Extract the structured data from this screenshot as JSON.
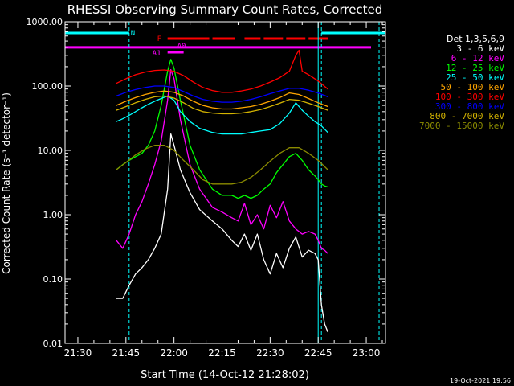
{
  "chart_data": {
    "type": "line",
    "title": "RHESSI Observing Summary Count Rates, Corrected",
    "xlabel": "Start Time (14-Oct-12 21:28:02)",
    "ylabel": "Corrected Count Rate (s⁻¹ detector⁻¹)",
    "x_ticks": [
      "21:30",
      "21:45",
      "22:00",
      "22:15",
      "22:30",
      "22:45",
      "23:00"
    ],
    "y_ticks": [
      "1000.00",
      "100.00",
      "10.00",
      "1.00",
      "0.10",
      "0.01"
    ],
    "yscale": "log",
    "xlim": [
      "21:26",
      "23:06"
    ],
    "ylim": [
      0.01,
      1000
    ],
    "legend_title": "Det 1,3,5,6,9",
    "legend_position": "right",
    "timestamp": "19-Oct-2021 19:56",
    "series": [
      {
        "name": "3 - 6 keV",
        "color": "#ffffff",
        "x": [
          "21:42",
          "21:44",
          "21:46",
          "21:48",
          "21:50",
          "21:52",
          "21:54",
          "21:56",
          "21:58",
          "21:59",
          "22:00",
          "22:02",
          "22:05",
          "22:08",
          "22:12",
          "22:15",
          "22:18",
          "22:20",
          "22:22",
          "22:24",
          "22:26",
          "22:28",
          "22:30",
          "22:32",
          "22:34",
          "22:36",
          "22:38",
          "22:40",
          "22:42",
          "22:44",
          "22:45",
          "22:46",
          "22:47",
          "22:48"
        ],
        "y": [
          0.05,
          0.05,
          0.08,
          0.12,
          0.15,
          0.2,
          0.3,
          0.5,
          2.5,
          18,
          12,
          5,
          2.2,
          1.2,
          0.8,
          0.6,
          0.4,
          0.32,
          0.5,
          0.28,
          0.5,
          0.2,
          0.12,
          0.25,
          0.15,
          0.3,
          0.45,
          0.22,
          0.28,
          0.25,
          0.2,
          0.04,
          0.02,
          0.015
        ]
      },
      {
        "name": "6 - 12 keV",
        "color": "#ff00ff",
        "x": [
          "21:42",
          "21:44",
          "21:46",
          "21:48",
          "21:50",
          "21:52",
          "21:54",
          "21:56",
          "21:58",
          "21:59",
          "22:00",
          "22:02",
          "22:05",
          "22:08",
          "22:12",
          "22:15",
          "22:18",
          "22:20",
          "22:22",
          "22:24",
          "22:26",
          "22:28",
          "22:30",
          "22:32",
          "22:34",
          "22:36",
          "22:38",
          "22:40",
          "22:42",
          "22:44",
          "22:45",
          "22:46",
          "22:47",
          "22:48"
        ],
        "y": [
          0.4,
          0.3,
          0.5,
          1.0,
          1.6,
          3,
          6,
          14,
          60,
          180,
          130,
          30,
          6,
          2.5,
          1.3,
          1.1,
          0.9,
          0.8,
          1.5,
          0.7,
          1.0,
          0.6,
          1.4,
          0.9,
          1.6,
          0.8,
          0.6,
          0.5,
          0.55,
          0.5,
          0.4,
          0.3,
          0.28,
          0.25
        ]
      },
      {
        "name": "12 - 25 keV",
        "color": "#00ff00",
        "x": [
          "21:42",
          "21:44",
          "21:46",
          "21:48",
          "21:50",
          "21:52",
          "21:54",
          "21:56",
          "21:58",
          "21:59",
          "22:00",
          "22:02",
          "22:05",
          "22:08",
          "22:12",
          "22:15",
          "22:18",
          "22:20",
          "22:22",
          "22:24",
          "22:26",
          "22:28",
          "22:30",
          "22:32",
          "22:34",
          "22:36",
          "22:38",
          "22:40",
          "22:42",
          "22:44",
          "22:45",
          "22:46",
          "22:47",
          "22:48"
        ],
        "y": [
          5,
          6,
          7,
          8,
          9,
          12,
          20,
          50,
          170,
          260,
          190,
          60,
          12,
          5,
          2.5,
          2,
          2,
          1.8,
          2,
          1.8,
          2,
          2.5,
          3,
          4.5,
          6,
          8,
          9,
          7,
          5,
          4,
          3.5,
          3,
          2.8,
          2.7
        ]
      },
      {
        "name": "25 - 50 keV",
        "color": "#00ffff",
        "x": [
          "21:42",
          "21:44",
          "21:46",
          "21:48",
          "21:50",
          "21:52",
          "21:54",
          "21:56",
          "21:58",
          "22:00",
          "22:02",
          "22:05",
          "22:08",
          "22:12",
          "22:15",
          "22:18",
          "22:21",
          "22:24",
          "22:27",
          "22:30",
          "22:33",
          "22:36",
          "22:38",
          "22:40",
          "22:42",
          "22:44",
          "22:46",
          "22:48"
        ],
        "y": [
          28,
          31,
          35,
          40,
          46,
          52,
          58,
          64,
          70,
          60,
          40,
          28,
          22,
          19,
          18,
          18,
          18,
          19,
          20,
          21,
          26,
          38,
          55,
          42,
          34,
          28,
          24,
          19
        ]
      },
      {
        "name": "50 - 100 keV",
        "color": "#ffa500",
        "x": [
          "21:42",
          "21:45",
          "21:48",
          "21:51",
          "21:54",
          "21:57",
          "22:00",
          "22:03",
          "22:06",
          "22:09",
          "22:12",
          "22:15",
          "22:18",
          "22:21",
          "22:24",
          "22:27",
          "22:30",
          "22:33",
          "22:36",
          "22:39",
          "22:42",
          "22:45",
          "22:48"
        ],
        "y": [
          50,
          58,
          66,
          74,
          80,
          84,
          80,
          70,
          58,
          50,
          46,
          44,
          44,
          46,
          48,
          52,
          58,
          66,
          78,
          74,
          64,
          55,
          48
        ]
      },
      {
        "name": "100 - 300 keV",
        "color": "#ff0000",
        "x": [
          "21:42",
          "21:45",
          "21:48",
          "21:51",
          "21:54",
          "21:57",
          "22:00",
          "22:03",
          "22:06",
          "22:09",
          "22:12",
          "22:15",
          "22:18",
          "22:21",
          "22:24",
          "22:27",
          "22:30",
          "22:33",
          "22:36",
          "22:38",
          "22:39",
          "22:40",
          "22:42",
          "22:45",
          "22:48"
        ],
        "y": [
          110,
          130,
          150,
          165,
          175,
          178,
          170,
          145,
          115,
          95,
          85,
          80,
          80,
          84,
          90,
          100,
          115,
          135,
          170,
          300,
          360,
          170,
          150,
          120,
          90
        ]
      },
      {
        "name": "300 - 800 keV",
        "color": "#0000ff",
        "x": [
          "21:42",
          "21:45",
          "21:48",
          "21:51",
          "21:54",
          "21:57",
          "22:00",
          "22:03",
          "22:06",
          "22:09",
          "22:12",
          "22:15",
          "22:18",
          "22:21",
          "22:24",
          "22:27",
          "22:30",
          "22:33",
          "22:36",
          "22:39",
          "22:42",
          "22:45",
          "22:48"
        ],
        "y": [
          70,
          80,
          88,
          95,
          100,
          100,
          95,
          82,
          70,
          62,
          58,
          56,
          56,
          58,
          62,
          68,
          76,
          84,
          92,
          92,
          86,
          78,
          68
        ]
      },
      {
        "name": "800 - 7000 keV",
        "color": "#d4b400",
        "x": [
          "21:42",
          "21:45",
          "21:48",
          "21:51",
          "21:54",
          "21:57",
          "22:00",
          "22:03",
          "22:06",
          "22:09",
          "22:12",
          "22:15",
          "22:18",
          "22:21",
          "22:24",
          "22:27",
          "22:30",
          "22:33",
          "22:36",
          "22:39",
          "22:42",
          "22:45",
          "22:48"
        ],
        "y": [
          42,
          48,
          55,
          62,
          68,
          70,
          65,
          55,
          45,
          40,
          38,
          37,
          37,
          38,
          40,
          43,
          48,
          54,
          62,
          60,
          54,
          48,
          42
        ]
      },
      {
        "name": "7000 - 15000 keV",
        "color": "#8b8b00",
        "x": [
          "21:42",
          "21:45",
          "21:48",
          "21:51",
          "21:54",
          "21:57",
          "22:00",
          "22:03",
          "22:06",
          "22:09",
          "22:12",
          "22:15",
          "22:18",
          "22:21",
          "22:24",
          "22:27",
          "22:30",
          "22:33",
          "22:36",
          "22:39",
          "22:42",
          "22:45",
          "22:48"
        ],
        "y": [
          5,
          6.5,
          8.5,
          10.5,
          12,
          12,
          10,
          7,
          5,
          3.5,
          3,
          3,
          3,
          3.2,
          3.8,
          5,
          6.8,
          9,
          11,
          11,
          9,
          7,
          5
        ]
      }
    ],
    "annotations": {
      "n_label": "N",
      "f_label": "F",
      "a1_label": "A1",
      "a0_label": "A0",
      "night_bars": [
        [
          "21:26",
          "21:46"
        ],
        [
          "22:46",
          "23:06"
        ]
      ],
      "flare_segments": [
        [
          "21:58",
          "22:11"
        ],
        [
          "22:12",
          "22:19"
        ],
        [
          "22:22",
          "22:27"
        ],
        [
          "22:28",
          "22:34"
        ],
        [
          "22:35",
          "22:41"
        ],
        [
          "22:42",
          "22:48"
        ]
      ],
      "attenuator_a1": [
        "21:58",
        "22:01"
      ],
      "attenuator_a0": [
        "22:01",
        "22:03"
      ],
      "saa_level_y": 400,
      "dashed_lines": [
        "21:46",
        "22:46",
        "23:04"
      ],
      "solid_line": "22:45"
    }
  }
}
